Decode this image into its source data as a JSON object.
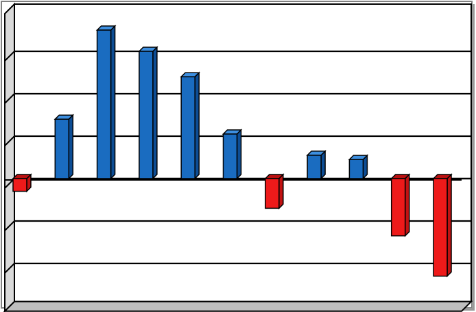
{
  "chart_data": {
    "type": "bar",
    "style": "3d-column",
    "categories": [
      "",
      "",
      "",
      "",
      "",
      "",
      "",
      "",
      "",
      "",
      ""
    ],
    "values": [
      -0.3,
      1.4,
      3.5,
      3.0,
      2.4,
      1.05,
      -0.7,
      0.55,
      0.45,
      -1.35,
      -2.3
    ],
    "ylim": [
      -2.9,
      4.0
    ],
    "gridlines": [
      -2,
      -1,
      0,
      1,
      2,
      3
    ],
    "grid": true,
    "legend": "none",
    "title": "",
    "xlabel": "",
    "ylabel": "",
    "colors": {
      "positive": "#1a6cc0",
      "positive_top": "#3d8fe0",
      "positive_side": "#0d4d94",
      "negative": "#ee1a1a",
      "negative_top": "#b81010",
      "negative_side": "#c21212",
      "outline": "#000000",
      "wall": "#ffffff",
      "frame": "#808080"
    }
  }
}
